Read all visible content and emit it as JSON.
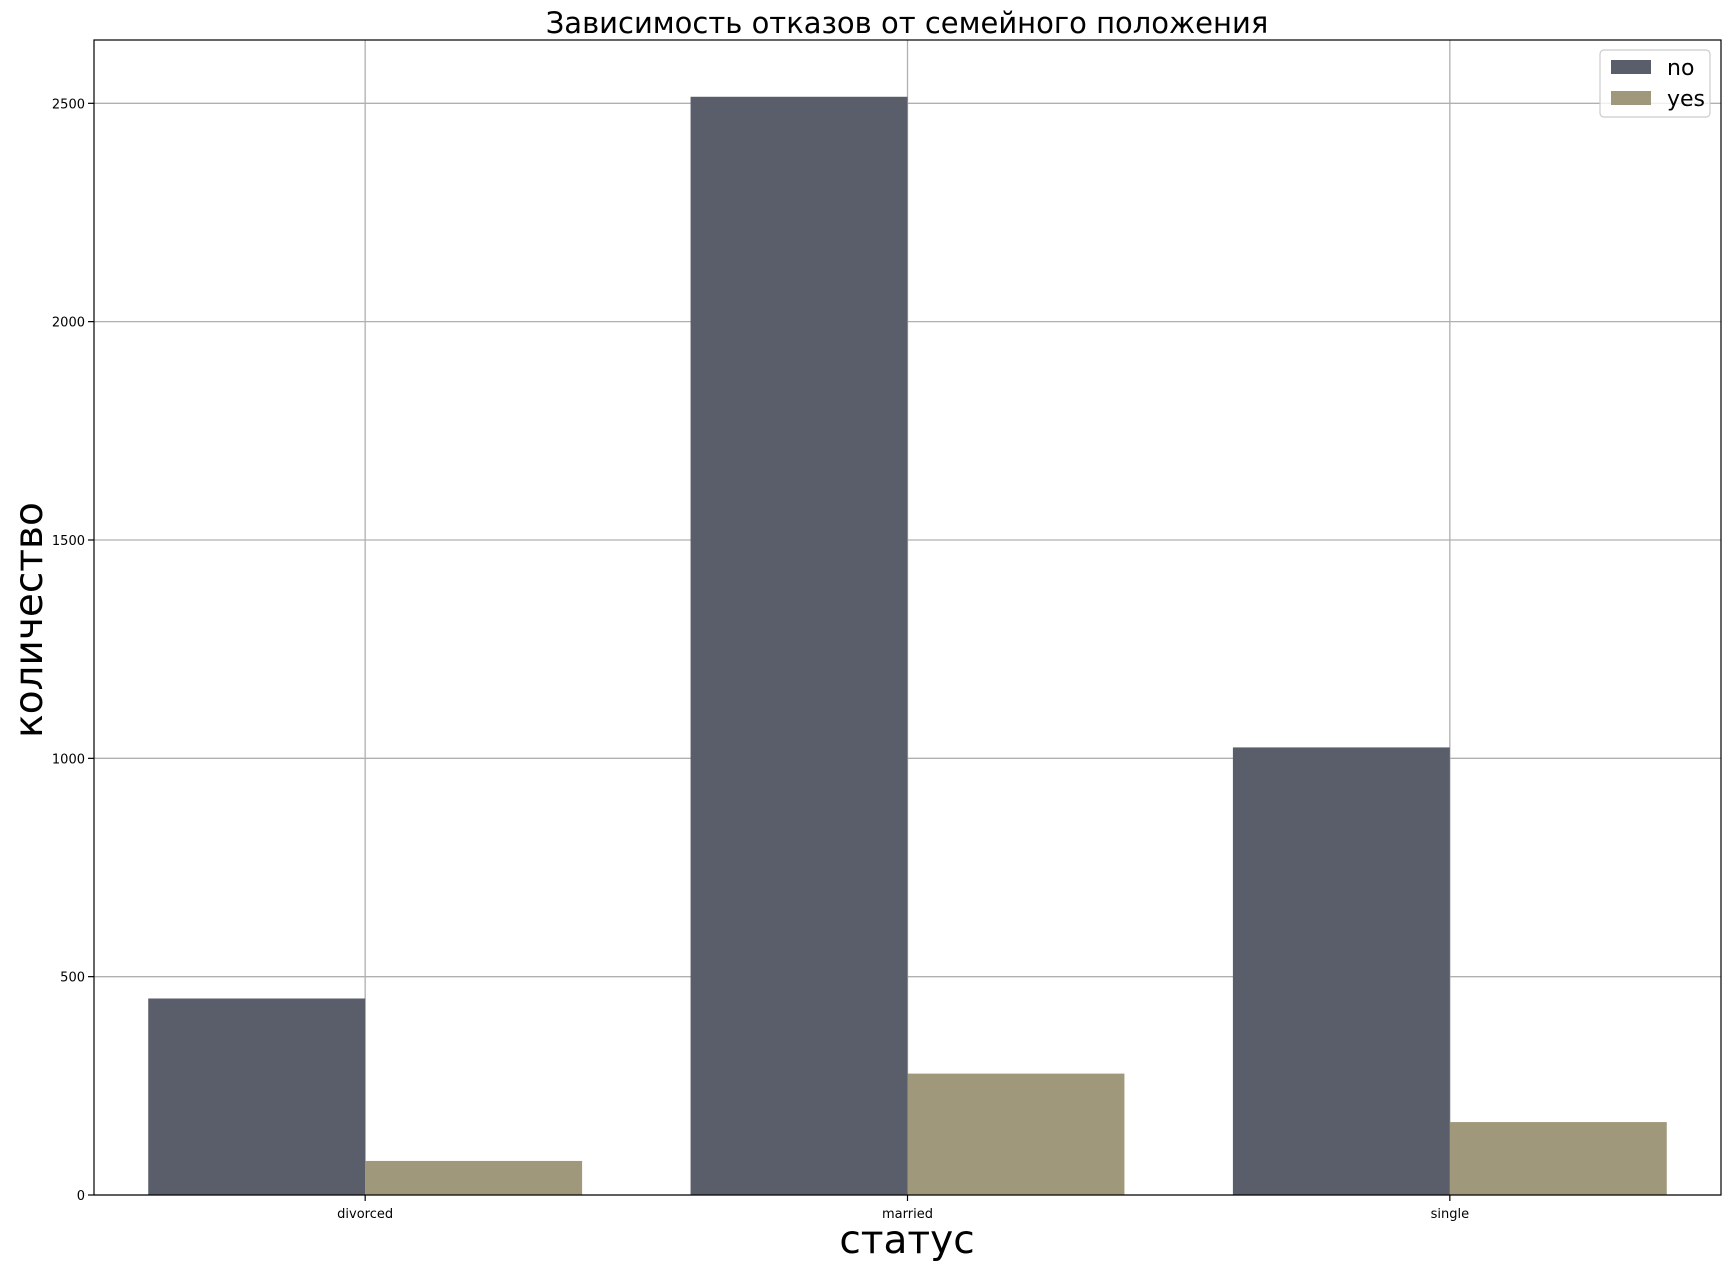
{
  "chart_data": {
    "type": "bar",
    "title": "Зависимость отказов от семейного положения",
    "xlabel": "статус",
    "ylabel": "количество",
    "categories": [
      "divorced",
      "married",
      "single"
    ],
    "series": [
      {
        "name": "no",
        "values": [
          450,
          2515,
          1025
        ],
        "color": "#5a5e6a"
      },
      {
        "name": "yes",
        "values": [
          78,
          278,
          167
        ],
        "color": "#a0987a"
      }
    ],
    "ylim": [
      0,
      2645
    ],
    "yticks": [
      0,
      500,
      1000,
      1500,
      2000,
      2500
    ],
    "grid": true,
    "legend": "top-right"
  }
}
